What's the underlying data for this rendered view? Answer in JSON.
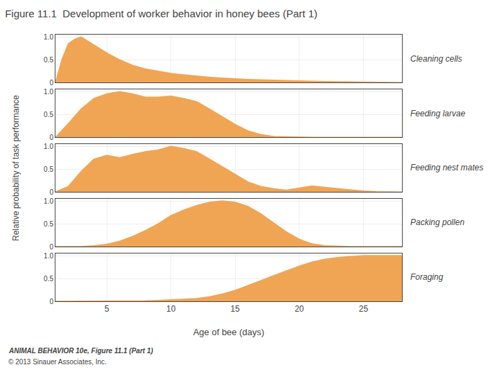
{
  "chart_data": {
    "type": "area",
    "title": "Figure 11.1  Development of worker behavior in honey bees (Part 1)",
    "xlabel": "Age of bee (days)",
    "ylabel": "Relative probability of task performance",
    "annotations": [
      "ANIMAL BEHAVIOR 10e, Figure 11.1 (Part 1)",
      "© 2013 Sinauer Associates, Inc."
    ],
    "color": "#f0a555",
    "series": [
      {
        "name": "Cleaning cells",
        "x": [
          1,
          1.5,
          2,
          2.5,
          3,
          4,
          5,
          6,
          7,
          8,
          9,
          10,
          11,
          12,
          13,
          14,
          15,
          16,
          17,
          18,
          19,
          20,
          21,
          22,
          23,
          24,
          25,
          26,
          27,
          28
        ],
        "values": [
          0.0,
          0.5,
          0.85,
          0.95,
          1.0,
          0.82,
          0.65,
          0.5,
          0.38,
          0.3,
          0.25,
          0.2,
          0.17,
          0.14,
          0.12,
          0.1,
          0.08,
          0.07,
          0.06,
          0.05,
          0.04,
          0.035,
          0.03,
          0.025,
          0.02,
          0.015,
          0.01,
          0.007,
          0.004,
          0.002
        ]
      },
      {
        "name": "Feeding larvae",
        "x": [
          1,
          2,
          3,
          4,
          5,
          6,
          7,
          8,
          9,
          10,
          11,
          12,
          13,
          14,
          15,
          16,
          17,
          18,
          19,
          20,
          21,
          22,
          23,
          24,
          25,
          26,
          27,
          28
        ],
        "values": [
          0.0,
          0.3,
          0.62,
          0.85,
          0.95,
          1.0,
          0.95,
          0.88,
          0.88,
          0.9,
          0.85,
          0.78,
          0.62,
          0.45,
          0.28,
          0.14,
          0.06,
          0.02,
          0.01,
          0.005,
          0.0,
          0.0,
          0.0,
          0.0,
          0.0,
          0.0,
          0.0,
          0.0
        ]
      },
      {
        "name": "Feeding nest mates",
        "x": [
          1,
          2,
          3,
          4,
          5,
          6,
          7,
          8,
          9,
          10,
          11,
          12,
          13,
          14,
          15,
          16,
          17,
          18,
          19,
          20,
          21,
          22,
          23,
          24,
          25,
          26,
          27,
          28
        ],
        "values": [
          0.0,
          0.12,
          0.45,
          0.72,
          0.8,
          0.75,
          0.82,
          0.88,
          0.92,
          1.0,
          0.95,
          0.88,
          0.72,
          0.55,
          0.38,
          0.22,
          0.12,
          0.07,
          0.04,
          0.09,
          0.13,
          0.1,
          0.07,
          0.04,
          0.02,
          0.005,
          0.0,
          0.0
        ]
      },
      {
        "name": "Packing pollen",
        "x": [
          1,
          2,
          3,
          4,
          5,
          6,
          7,
          8,
          9,
          10,
          11,
          12,
          13,
          14,
          15,
          16,
          17,
          18,
          19,
          20,
          21,
          22,
          23,
          24,
          25,
          26,
          27,
          28
        ],
        "values": [
          0.0,
          0.0,
          0.0,
          0.02,
          0.05,
          0.12,
          0.22,
          0.35,
          0.5,
          0.68,
          0.8,
          0.9,
          0.97,
          1.0,
          0.97,
          0.88,
          0.72,
          0.52,
          0.32,
          0.16,
          0.06,
          0.02,
          0.005,
          0.0,
          0.0,
          0.0,
          0.0,
          0.0
        ]
      },
      {
        "name": "Foraging",
        "x": [
          1,
          2,
          3,
          4,
          5,
          6,
          7,
          8,
          9,
          10,
          11,
          12,
          13,
          14,
          15,
          16,
          17,
          18,
          19,
          20,
          21,
          22,
          23,
          24,
          25,
          26,
          27,
          28
        ],
        "values": [
          0.0,
          0.0,
          0.0,
          0.0,
          0.0,
          0.0,
          0.0,
          0.01,
          0.02,
          0.03,
          0.04,
          0.06,
          0.1,
          0.16,
          0.24,
          0.34,
          0.45,
          0.56,
          0.67,
          0.77,
          0.86,
          0.92,
          0.96,
          0.98,
          1.0,
          1.0,
          1.0,
          1.0
        ]
      }
    ],
    "xlim": [
      1,
      28
    ],
    "xticks": [
      5,
      10,
      15,
      20,
      25
    ],
    "ylim": [
      0,
      1.05
    ],
    "yticks": [
      0,
      0.5,
      {
        "value": 1.0,
        "label": "1.0"
      }
    ],
    "grid": true
  }
}
